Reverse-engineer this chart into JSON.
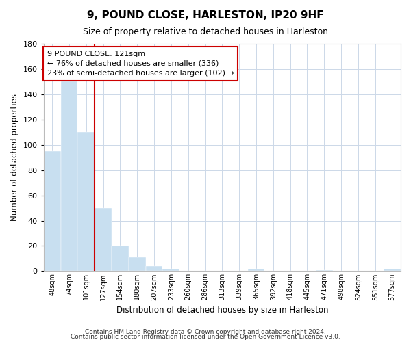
{
  "title": "9, POUND CLOSE, HARLESTON, IP20 9HF",
  "subtitle": "Size of property relative to detached houses in Harleston",
  "xlabel": "Distribution of detached houses by size in Harleston",
  "ylabel": "Number of detached properties",
  "bar_color": "#c8dff0",
  "bar_edge_color": "#c8dff0",
  "categories": [
    "48sqm",
    "74sqm",
    "101sqm",
    "127sqm",
    "154sqm",
    "180sqm",
    "207sqm",
    "233sqm",
    "260sqm",
    "286sqm",
    "313sqm",
    "339sqm",
    "365sqm",
    "392sqm",
    "418sqm",
    "445sqm",
    "471sqm",
    "498sqm",
    "524sqm",
    "551sqm",
    "577sqm"
  ],
  "values": [
    95,
    150,
    110,
    50,
    20,
    11,
    4,
    2,
    0,
    0,
    0,
    0,
    2,
    0,
    0,
    0,
    1,
    0,
    0,
    0,
    2
  ],
  "ylim": [
    0,
    180
  ],
  "yticks": [
    0,
    20,
    40,
    60,
    80,
    100,
    120,
    140,
    160,
    180
  ],
  "vline_color": "#cc0000",
  "annotation_title": "9 POUND CLOSE: 121sqm",
  "annotation_line1": "← 76% of detached houses are smaller (336)",
  "annotation_line2": "23% of semi-detached houses are larger (102) →",
  "annotation_box_color": "#ffffff",
  "annotation_box_edge": "#cc0000",
  "footer1": "Contains HM Land Registry data © Crown copyright and database right 2024.",
  "footer2": "Contains public sector information licensed under the Open Government Licence v3.0.",
  "background_color": "#ffffff",
  "grid_color": "#ccd8e8"
}
